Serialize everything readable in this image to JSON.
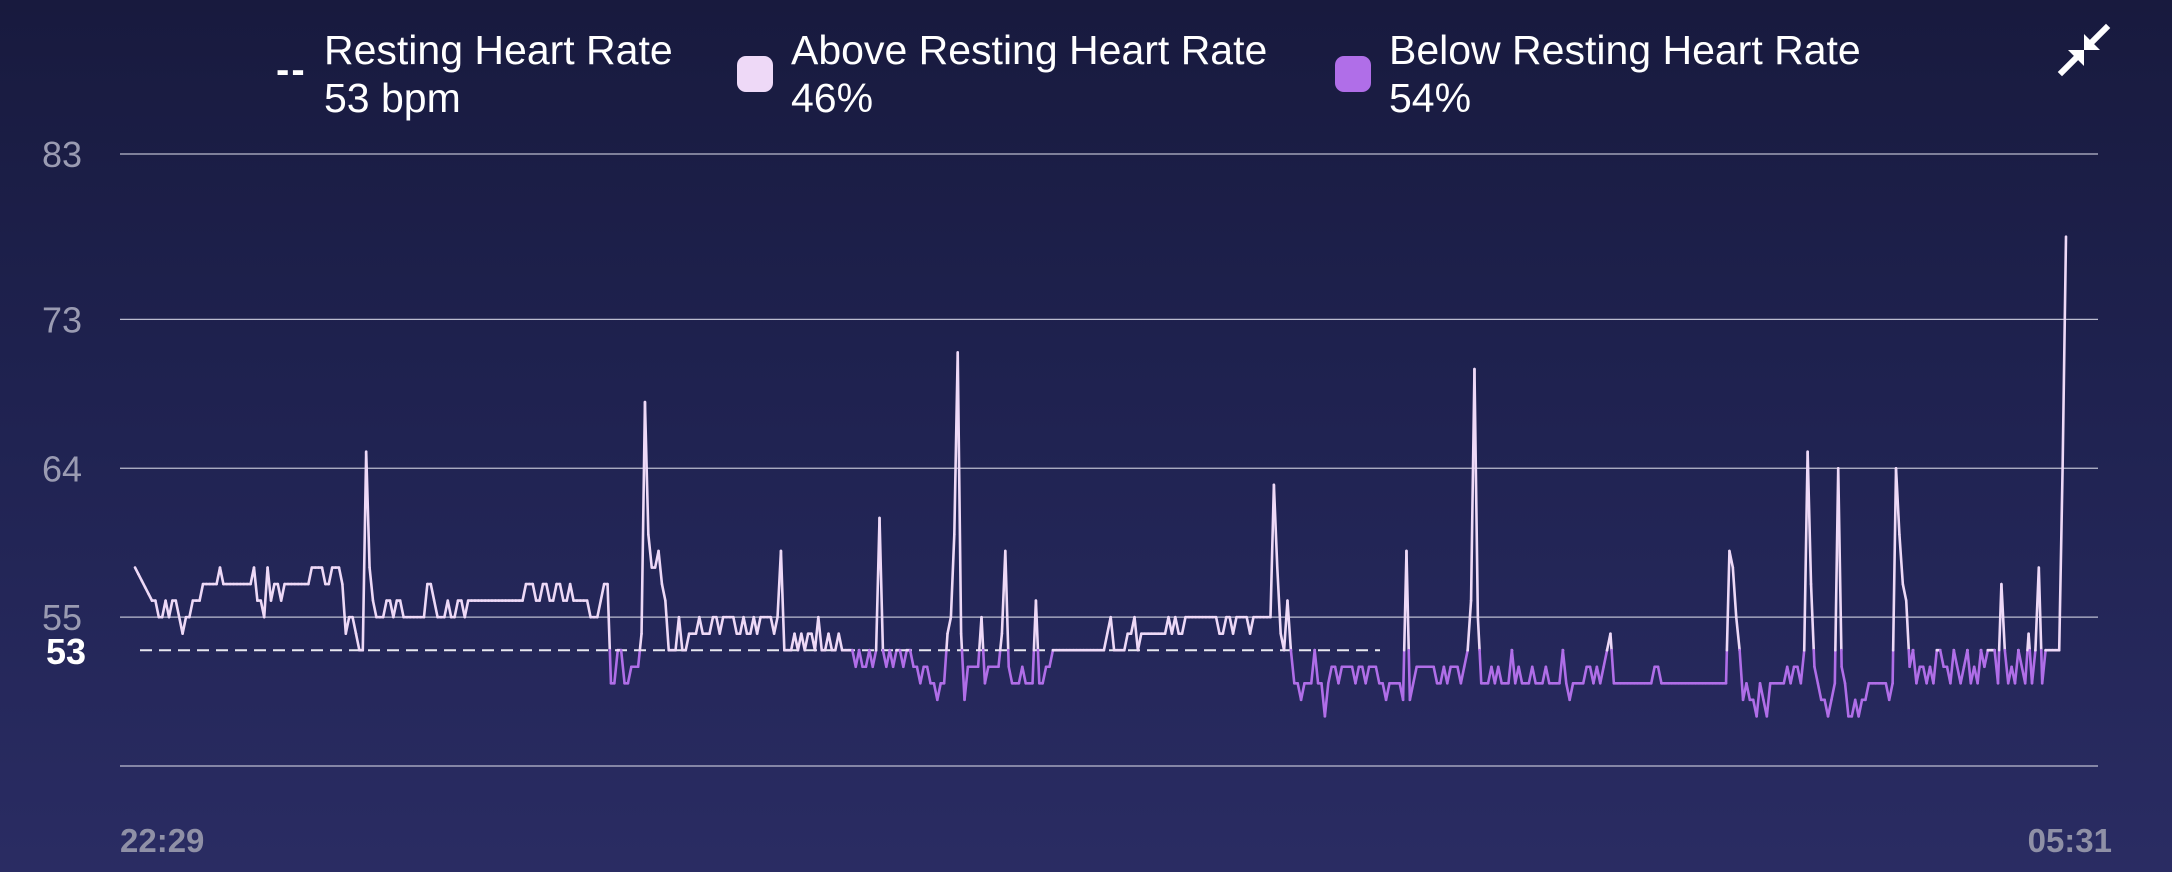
{
  "legend": {
    "resting": {
      "symbol": "--",
      "label": "Resting Heart Rate",
      "value": "53 bpm"
    },
    "above": {
      "label": "Above Resting Heart Rate",
      "value": "46%",
      "color": "#eed9f7"
    },
    "below": {
      "label": "Below Resting Heart Rate",
      "value": "54%",
      "color": "#b06ee8"
    }
  },
  "controls": {
    "collapse_icon": "collapse-arrows-icon"
  },
  "chart_data": {
    "type": "line",
    "title": "",
    "xlabel": "",
    "ylabel": "",
    "x_start_label": "22:29",
    "x_end_label": "05:31",
    "y_ticks": [
      83,
      73,
      64,
      55
    ],
    "resting_value": 53,
    "resting_label": "53",
    "ylim": [
      46,
      83
    ],
    "grid": true,
    "legend_position": "top",
    "colors": {
      "above": "#eed9f7",
      "below": "#b06ee8",
      "grid": "#d8d8e6",
      "resting_line": "#e8e8f0"
    },
    "series": [
      {
        "values": [
          58,
          57.6,
          57.2,
          56.8,
          56.4,
          56,
          56,
          55,
          55,
          56,
          55,
          56,
          56,
          55,
          54,
          55,
          55,
          56,
          56,
          56,
          57,
          57,
          57,
          57,
          57,
          58,
          57,
          57,
          57,
          57,
          57,
          57,
          57,
          57,
          57,
          58,
          56,
          56,
          55,
          58,
          56,
          57,
          57,
          56,
          57,
          57,
          57,
          57,
          57,
          57,
          57,
          57,
          58,
          58,
          58,
          58,
          57,
          57,
          58,
          58,
          58,
          57,
          54,
          55,
          55,
          54,
          53,
          53,
          65,
          58,
          56,
          55,
          55,
          55,
          56,
          56,
          55,
          56,
          56,
          55,
          55,
          55,
          55,
          55,
          55,
          55,
          57,
          57,
          56,
          55,
          55,
          55,
          56,
          55,
          55,
          56,
          56,
          55,
          56,
          56,
          56,
          56,
          56,
          56,
          56,
          56,
          56,
          56,
          56,
          56,
          56,
          56,
          56,
          56,
          56,
          57,
          57,
          57,
          56,
          56,
          57,
          57,
          56,
          56,
          57,
          57,
          56,
          56,
          57,
          56,
          56,
          56,
          56,
          56,
          55,
          55,
          55,
          56,
          57,
          57,
          51,
          51,
          53,
          53,
          51,
          51,
          52,
          52,
          52,
          54,
          68,
          60,
          58,
          58,
          59,
          57,
          56,
          53,
          53,
          53,
          55,
          53,
          53,
          54,
          54,
          54,
          55,
          54,
          54,
          54,
          55,
          55,
          54,
          55,
          55,
          55,
          55,
          54,
          54,
          55,
          54,
          54,
          55,
          54,
          55,
          55,
          55,
          55,
          54,
          55,
          59,
          53,
          53,
          53,
          54,
          53,
          54,
          53,
          54,
          54,
          53,
          55,
          53,
          53,
          54,
          53,
          53,
          54,
          53,
          53,
          53,
          53,
          52,
          53,
          52,
          52,
          53,
          52,
          53,
          61,
          53,
          52,
          53,
          52,
          53,
          53,
          52,
          53,
          53,
          52,
          52,
          51,
          52,
          52,
          51,
          51,
          50,
          51,
          51,
          54,
          55,
          60,
          71,
          54,
          50,
          52,
          52,
          52,
          52,
          55,
          51,
          52,
          52,
          52,
          52,
          54,
          59,
          52,
          51,
          51,
          51,
          52,
          51,
          51,
          51,
          56,
          51,
          51,
          52,
          52,
          53,
          53,
          53,
          53,
          53,
          53,
          53,
          53,
          53,
          53,
          53,
          53,
          53,
          53,
          53,
          53,
          54,
          55,
          53,
          53,
          53,
          53,
          54,
          54,
          55,
          53,
          54,
          54,
          54,
          54,
          54,
          54,
          54,
          54,
          55,
          54,
          55,
          54,
          54,
          55,
          55,
          55,
          55,
          55,
          55,
          55,
          55,
          55,
          55,
          54,
          54,
          55,
          55,
          54,
          55,
          55,
          55,
          55,
          54,
          55,
          55,
          55,
          55,
          55,
          55,
          63,
          58,
          54,
          53,
          56,
          53,
          51,
          51,
          50,
          51,
          51,
          51,
          53,
          51,
          51,
          49,
          51,
          52,
          52,
          51,
          52,
          52,
          52,
          52,
          51,
          52,
          52,
          51,
          52,
          52,
          52,
          51,
          51,
          50,
          51,
          51,
          51,
          51,
          50,
          59,
          50,
          51,
          52,
          52,
          52,
          52,
          52,
          52,
          51,
          51,
          52,
          51,
          52,
          52,
          52,
          51,
          52,
          53,
          56,
          70,
          55,
          51,
          51,
          51,
          52,
          51,
          52,
          51,
          51,
          51,
          53,
          51,
          52,
          51,
          51,
          51,
          52,
          51,
          51,
          51,
          52,
          51,
          51,
          51,
          51,
          53,
          51,
          50,
          51,
          51,
          51,
          51,
          52,
          52,
          51,
          52,
          51,
          52,
          53,
          54,
          51,
          51,
          51,
          51,
          51,
          51,
          51,
          51,
          51,
          51,
          51,
          51,
          52,
          52,
          51,
          51,
          51,
          51,
          51,
          51,
          51,
          51,
          51,
          51,
          51,
          51,
          51,
          51,
          51,
          51,
          51,
          51,
          51,
          51,
          59,
          58,
          55,
          53,
          50,
          51,
          50,
          50,
          49,
          51,
          50,
          49,
          51,
          51,
          51,
          51,
          51,
          52,
          51,
          52,
          52,
          51,
          53,
          65,
          57,
          52,
          51,
          50,
          50,
          49,
          50,
          51,
          64,
          52,
          51,
          49,
          49,
          50,
          49,
          50,
          50,
          51,
          51,
          51,
          51,
          51,
          51,
          50,
          51,
          64,
          60,
          57,
          56,
          52,
          53,
          51,
          52,
          52,
          51,
          52,
          51,
          53,
          53,
          52,
          52,
          51,
          53,
          52,
          51,
          52,
          53,
          51,
          52,
          51,
          53,
          52,
          53,
          53,
          53,
          51,
          57,
          53,
          51,
          52,
          51,
          53,
          52,
          51,
          54,
          51,
          53,
          58,
          51,
          53,
          53,
          53,
          53,
          53,
          64,
          78
        ]
      }
    ]
  }
}
